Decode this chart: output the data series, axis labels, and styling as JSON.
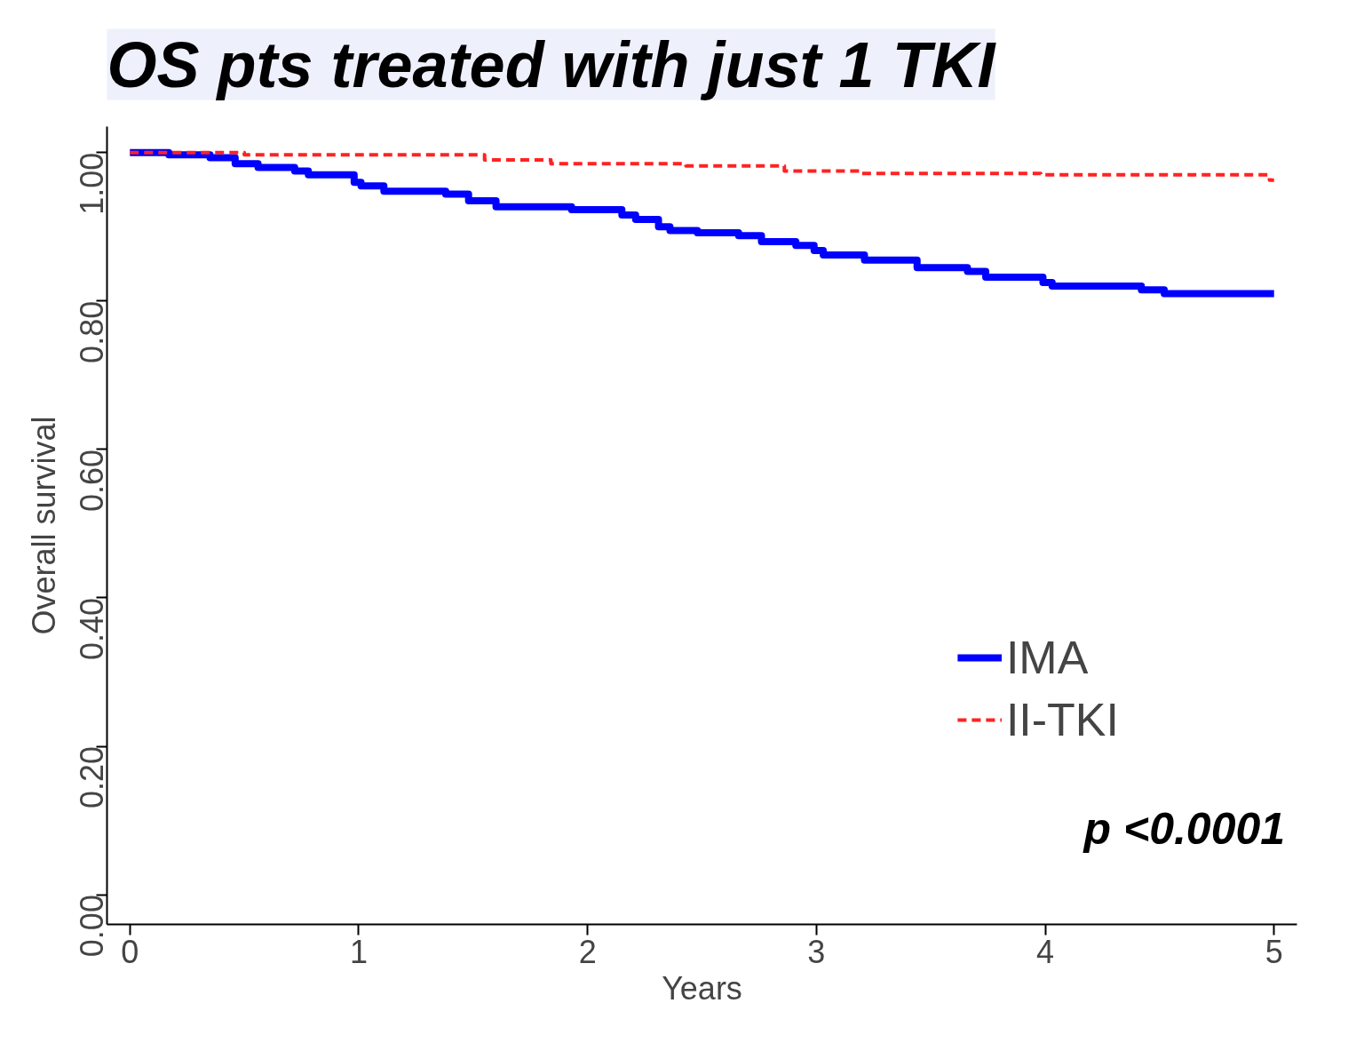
{
  "chart_data": {
    "type": "step",
    "title": "OS pts treated with just 1 TKI",
    "xlabel": "Years",
    "ylabel": "Overall survival",
    "series": [
      {
        "name": "IMA",
        "color": "#0000ff",
        "line_style": "solid",
        "x": [
          0,
          0.17,
          0.35,
          0.46,
          0.56,
          0.72,
          0.78,
          0.98,
          1.01,
          1.11,
          1.38,
          1.48,
          1.6,
          1.93,
          2.15,
          2.21,
          2.31,
          2.36,
          2.48,
          2.66,
          2.76,
          2.91,
          2.99,
          3.03,
          3.21,
          3.44,
          3.66,
          3.74,
          3.99,
          4.03,
          4.42,
          4.52,
          5
        ],
        "values": [
          1.0,
          0.997,
          0.993,
          0.985,
          0.98,
          0.975,
          0.97,
          0.96,
          0.955,
          0.948,
          0.944,
          0.935,
          0.927,
          0.923,
          0.916,
          0.91,
          0.9,
          0.895,
          0.892,
          0.888,
          0.88,
          0.875,
          0.868,
          0.862,
          0.855,
          0.845,
          0.84,
          0.832,
          0.825,
          0.82,
          0.815,
          0.81,
          0.81
        ]
      },
      {
        "name": "II-TKI",
        "color": "#ff2222",
        "line_style": "dashed",
        "x": [
          0,
          0.5,
          1.55,
          1.84,
          2.43,
          2.86,
          3.19,
          3.98,
          4.98,
          5
        ],
        "values": [
          1.0,
          0.997,
          0.99,
          0.985,
          0.982,
          0.975,
          0.972,
          0.97,
          0.963,
          0.963
        ]
      }
    ],
    "xlim": [
      -0.1,
      5.1
    ],
    "ylim": [
      -0.04,
      1.035
    ],
    "xticks": [
      0,
      1,
      2,
      3,
      4,
      5
    ],
    "yticks": [
      {
        "value": 0,
        "label": "0.00"
      },
      {
        "value": 0.2,
        "label": "0.20"
      },
      {
        "value": 0.4,
        "label": "0.40"
      },
      {
        "value": 0.6,
        "label": "0.60"
      },
      {
        "value": 0.8,
        "label": "0.80"
      },
      {
        "value": 1,
        "label": "1.00"
      }
    ],
    "legend": "bottom right",
    "grid": false,
    "annotations": [
      "p <0.0001"
    ]
  }
}
